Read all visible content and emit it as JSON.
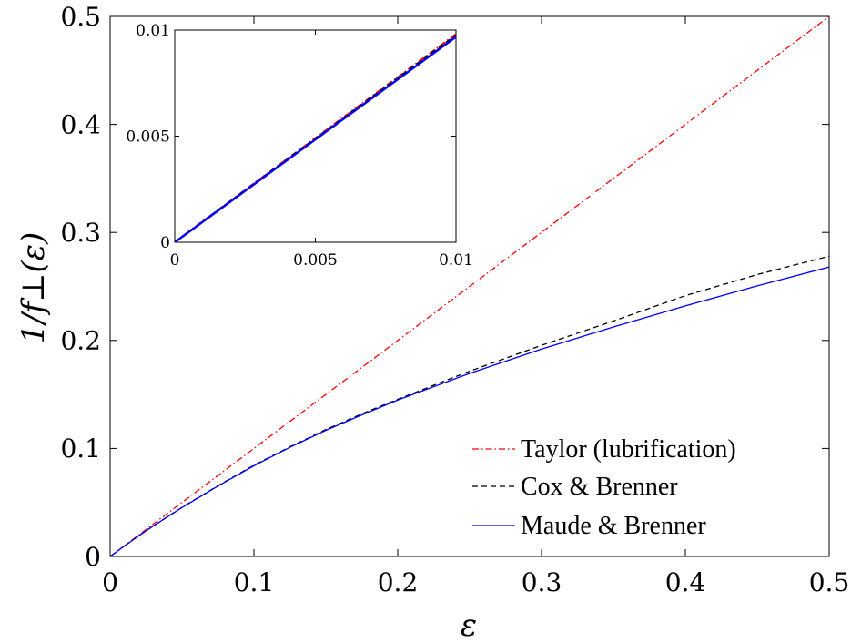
{
  "chart_data": [
    {
      "type": "line",
      "xlabel": "ε",
      "ylabel": "1/f⊥(ε)",
      "xlim": [
        0,
        0.5
      ],
      "ylim": [
        0,
        0.5
      ],
      "xticks": [
        0,
        0.1,
        0.2,
        0.3,
        0.4,
        0.5
      ],
      "xtick_labels": [
        "0",
        "0.1",
        "0.2",
        "0.3",
        "0.4",
        "0.5"
      ],
      "yticks": [
        0,
        0.1,
        0.2,
        0.3,
        0.4,
        0.5
      ],
      "ytick_labels": [
        "0",
        "0.1",
        "0.2",
        "0.3",
        "0.4",
        "0.5"
      ],
      "grid": false,
      "legend_position": "bottom-right",
      "series": [
        {
          "name": "Taylor (lubrification)",
          "color": "#ff0000",
          "style": "dashdot",
          "x": [
            0,
            0.05,
            0.1,
            0.15,
            0.2,
            0.25,
            0.3,
            0.35,
            0.4,
            0.45,
            0.5
          ],
          "y": [
            0,
            0.05,
            0.1,
            0.15,
            0.2,
            0.25,
            0.3,
            0.35,
            0.4,
            0.45,
            0.5
          ]
        },
        {
          "name": "Cox & Brenner",
          "color": "#000000",
          "style": "dashed",
          "x": [
            0,
            0.01,
            0.02,
            0.03,
            0.05,
            0.075,
            0.1,
            0.125,
            0.15,
            0.175,
            0.2,
            0.25,
            0.3,
            0.35,
            0.4,
            0.45,
            0.5
          ],
          "y": [
            0,
            0.0098,
            0.0193,
            0.0283,
            0.0455,
            0.0655,
            0.0845,
            0.1015,
            0.1175,
            0.132,
            0.1455,
            0.1715,
            0.1955,
            0.218,
            0.2415,
            0.261,
            0.278
          ]
        },
        {
          "name": "Maude & Brenner",
          "color": "#0000ff",
          "style": "solid",
          "x": [
            0,
            0.01,
            0.02,
            0.03,
            0.05,
            0.075,
            0.1,
            0.125,
            0.15,
            0.175,
            0.2,
            0.25,
            0.3,
            0.35,
            0.4,
            0.45,
            0.5
          ],
          "y": [
            0,
            0.0097,
            0.0192,
            0.0282,
            0.0453,
            0.0652,
            0.084,
            0.101,
            0.1168,
            0.131,
            0.1448,
            0.1695,
            0.192,
            0.2125,
            0.232,
            0.2505,
            0.268
          ]
        }
      ]
    },
    {
      "type": "line",
      "role": "inset",
      "xlim": [
        0,
        0.01
      ],
      "ylim": [
        0,
        0.01
      ],
      "xticks": [
        0,
        0.005,
        0.01
      ],
      "xtick_labels": [
        "0",
        "0.005",
        "0.01"
      ],
      "yticks": [
        0,
        0.005,
        0.01
      ],
      "ytick_labels": [
        "0",
        "0.005",
        "0.01"
      ],
      "grid": false,
      "series": [
        {
          "color": "#ff0000",
          "style": "dashdot",
          "x": [
            0,
            0.01
          ],
          "y": [
            0,
            0.0098
          ]
        },
        {
          "color": "#000000",
          "style": "dashed",
          "x": [
            0,
            0.01
          ],
          "y": [
            0,
            0.00975
          ]
        },
        {
          "color": "#0000ff",
          "style": "solid",
          "x": [
            0,
            0.01
          ],
          "y": [
            0,
            0.00968
          ]
        }
      ]
    }
  ]
}
